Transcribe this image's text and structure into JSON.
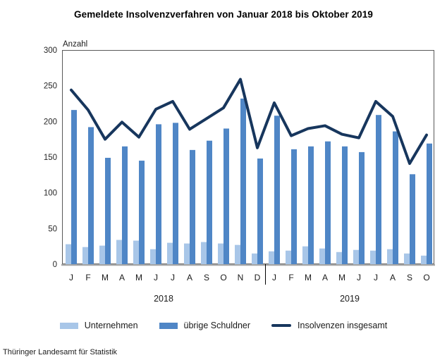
{
  "title": "Gemeldete Insolvenzverfahren von Januar 2018 bis Oktober 2019",
  "footer": {
    "source": "Thüringer Landesamt für Statistik"
  },
  "chart_data": {
    "type": "bar",
    "subtype": "grouped-bars-with-line",
    "title": "Gemeldete Insolvenzverfahren von Januar 2018 bis Oktober 2019",
    "xlabel": "",
    "ylabel": "Anzahl",
    "ylim": [
      0,
      300
    ],
    "ytick_step": 50,
    "grid": false,
    "legend_position": "bottom",
    "months": [
      "J",
      "F",
      "M",
      "A",
      "M",
      "J",
      "J",
      "A",
      "S",
      "O",
      "N",
      "D",
      "J",
      "F",
      "M",
      "A",
      "M",
      "J",
      "J",
      "A",
      "S",
      "O"
    ],
    "year_groups": [
      {
        "label": "2018",
        "start": 0,
        "count": 12
      },
      {
        "label": "2019",
        "start": 12,
        "count": 10
      }
    ],
    "series": [
      {
        "name": "Unternehmen",
        "type": "bar",
        "color": "#a8c6e8",
        "values": [
          28,
          24,
          26,
          34,
          33,
          21,
          30,
          29,
          31,
          29,
          27,
          15,
          18,
          19,
          25,
          22,
          17,
          20,
          19,
          21,
          15,
          12
        ]
      },
      {
        "name": "übrige Schuldner",
        "type": "bar",
        "color": "#4f86c6",
        "values": [
          216,
          192,
          149,
          165,
          145,
          196,
          198,
          160,
          173,
          190,
          232,
          148,
          208,
          161,
          165,
          172,
          165,
          157,
          209,
          186,
          126,
          169
        ]
      },
      {
        "name": "Insolvenzen insgesamt",
        "type": "line",
        "color": "#17365d",
        "values": [
          244,
          216,
          175,
          199,
          178,
          217,
          228,
          189,
          204,
          219,
          259,
          163,
          226,
          180,
          190,
          194,
          182,
          177,
          228,
          207,
          141,
          181
        ]
      }
    ],
    "axis_colors": {
      "plot_border": "#595959",
      "baseline": "#a6a6a6",
      "year_divider": "#000000"
    }
  }
}
